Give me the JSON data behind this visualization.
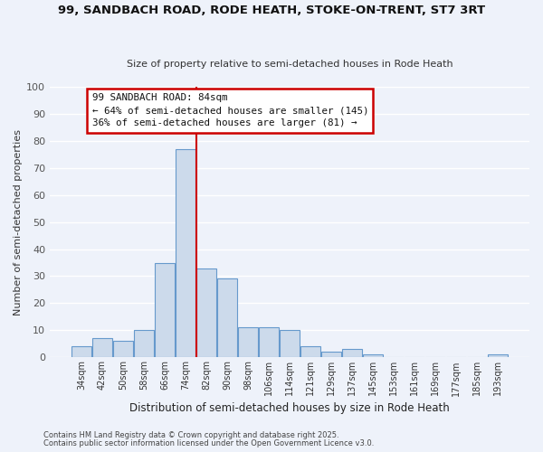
{
  "title1": "99, SANDBACH ROAD, RODE HEATH, STOKE-ON-TRENT, ST7 3RT",
  "title2": "Size of property relative to semi-detached houses in Rode Heath",
  "xlabel": "Distribution of semi-detached houses by size in Rode Heath",
  "ylabel": "Number of semi-detached properties",
  "categories": [
    "34sqm",
    "42sqm",
    "50sqm",
    "58sqm",
    "66sqm",
    "74sqm",
    "82sqm",
    "90sqm",
    "98sqm",
    "106sqm",
    "114sqm",
    "121sqm",
    "129sqm",
    "137sqm",
    "145sqm",
    "153sqm",
    "161sqm",
    "169sqm",
    "177sqm",
    "185sqm",
    "193sqm"
  ],
  "values": [
    4,
    7,
    6,
    10,
    35,
    77,
    33,
    29,
    11,
    11,
    10,
    4,
    2,
    3,
    1,
    0,
    0,
    0,
    0,
    0,
    1
  ],
  "bar_color": "#ccdaeb",
  "bar_edge_color": "#6699cc",
  "background_color": "#eef2fa",
  "grid_color": "#ffffff",
  "vline_color": "#cc0000",
  "vline_index": 6,
  "annotation_title": "99 SANDBACH ROAD: 84sqm",
  "annotation_line1": "← 64% of semi-detached houses are smaller (145)",
  "annotation_line2": "36% of semi-detached houses are larger (81) →",
  "annotation_box_facecolor": "#ffffff",
  "annotation_box_edgecolor": "#cc0000",
  "ylim": [
    0,
    100
  ],
  "footnote1": "Contains HM Land Registry data © Crown copyright and database right 2025.",
  "footnote2": "Contains public sector information licensed under the Open Government Licence v3.0."
}
